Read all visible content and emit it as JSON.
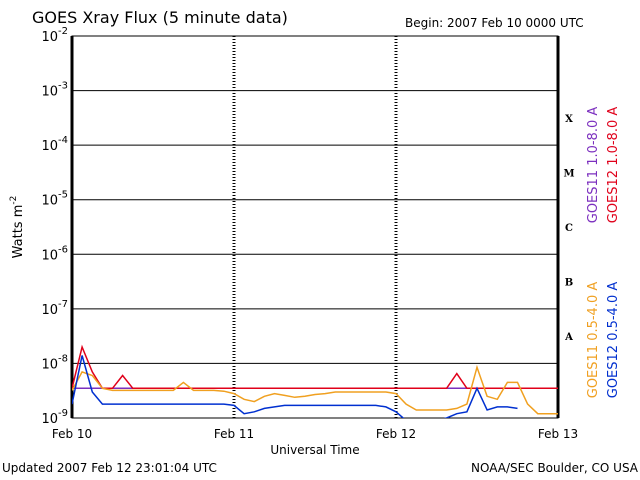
{
  "chart_data": {
    "type": "line",
    "title": "GOES Xray Flux (5 minute data)",
    "subtitle": "Begin:  2007 Feb 10 0000 UTC",
    "xlabel": "Universal Time",
    "ylabel": "Watts m",
    "ylabel_exponent": "-2",
    "footer_left": "Updated 2007 Feb 12 23:01:04 UTC",
    "footer_right": "NOAA/SEC Boulder, CO USA",
    "log_y": true,
    "grid": true,
    "xlim": [
      0,
      72
    ],
    "xticks": [
      {
        "value": 0,
        "label": "Feb 10"
      },
      {
        "value": 24,
        "label": "Feb 11"
      },
      {
        "value": 48,
        "label": "Feb 12"
      },
      {
        "value": 72,
        "label": "Feb 13"
      }
    ],
    "ylim": [
      1e-09,
      0.01
    ],
    "yticks": [
      {
        "value": 1e-09,
        "label": "10",
        "exponent": "-9"
      },
      {
        "value": 1e-08,
        "label": "10",
        "exponent": "-8"
      },
      {
        "value": 1e-07,
        "label": "10",
        "exponent": "-7"
      },
      {
        "value": 1e-06,
        "label": "10",
        "exponent": "-6"
      },
      {
        "value": 1e-05,
        "label": "10",
        "exponent": "-5"
      },
      {
        "value": 0.0001,
        "label": "10",
        "exponent": "-4"
      },
      {
        "value": 0.001,
        "label": "10",
        "exponent": "-3"
      },
      {
        "value": 0.01,
        "label": "10",
        "exponent": "-2"
      }
    ],
    "flare_classes": [
      "A",
      "B",
      "C",
      "M",
      "X"
    ],
    "x": [
      0,
      1.5,
      3,
      4.5,
      6,
      7.5,
      9,
      10.5,
      12,
      13.5,
      15,
      16.5,
      18,
      19.5,
      21,
      22.5,
      24,
      25.5,
      27,
      28.5,
      30,
      31.5,
      33,
      34.5,
      36,
      37.5,
      39,
      40.5,
      42,
      43.5,
      45,
      46.5,
      48,
      49.5,
      51,
      52.5,
      54,
      55.5,
      57,
      58.5,
      60,
      61.5,
      63,
      64.5,
      66,
      67.5,
      69,
      70.5,
      72
    ],
    "series": [
      {
        "name": "GOES11 1.0-8.0 A",
        "color": "#7b2fbf",
        "values": [
          3.5e-09,
          3.5e-09,
          3.5e-09,
          3.5e-09,
          3.5e-09,
          3.5e-09,
          3.5e-09,
          3.5e-09,
          3.5e-09,
          3.5e-09,
          3.5e-09,
          3.5e-09,
          3.5e-09,
          3.5e-09,
          3.5e-09,
          3.5e-09,
          3.5e-09,
          3.5e-09,
          3.5e-09,
          3.5e-09,
          3.5e-09,
          3.5e-09,
          3.5e-09,
          3.5e-09,
          3.5e-09,
          3.5e-09,
          3.5e-09,
          3.5e-09,
          3.5e-09,
          3.5e-09,
          3.5e-09,
          3.5e-09,
          3.5e-09,
          3.5e-09,
          3.5e-09,
          3.5e-09,
          3.5e-09,
          3.5e-09,
          3.5e-09,
          3.5e-09,
          3.5e-09,
          3.5e-09,
          3.5e-09,
          3.5e-09,
          3.5e-09,
          3.5e-09,
          3.5e-09,
          3.5e-09,
          3.5e-09
        ]
      },
      {
        "name": "GOES12 1.0-8.0 A",
        "color": "#e0001a",
        "values": [
          3.5e-09,
          2e-08,
          7e-09,
          3.5e-09,
          3.5e-09,
          6e-09,
          3.5e-09,
          3.5e-09,
          3.5e-09,
          3.5e-09,
          3.5e-09,
          3.5e-09,
          3.5e-09,
          3.5e-09,
          3.5e-09,
          3.5e-09,
          3.5e-09,
          3.5e-09,
          3.5e-09,
          3.5e-09,
          3.5e-09,
          3.5e-09,
          3.5e-09,
          3.5e-09,
          3.5e-09,
          3.5e-09,
          3.5e-09,
          3.5e-09,
          3.5e-09,
          3.5e-09,
          3.5e-09,
          3.5e-09,
          3.5e-09,
          3.5e-09,
          3.5e-09,
          3.5e-09,
          3.5e-09,
          3.5e-09,
          6.5e-09,
          3.5e-09,
          3.5e-09,
          3.5e-09,
          3.5e-09,
          3.5e-09,
          3.5e-09,
          3.5e-09,
          3.5e-09,
          3.5e-09,
          3.5e-09
        ]
      },
      {
        "name": "GOES11 0.5-4.0 A",
        "color": "#f0a020",
        "values": [
          3.2e-09,
          7e-09,
          6e-09,
          3.5e-09,
          3.2e-09,
          3.2e-09,
          3.2e-09,
          3.2e-09,
          3.2e-09,
          3.2e-09,
          3.2e-09,
          4.5e-09,
          3.2e-09,
          3.2e-09,
          3.2e-09,
          3.1e-09,
          2.8e-09,
          2.2e-09,
          2e-09,
          2.5e-09,
          2.8e-09,
          2.6e-09,
          2.4e-09,
          2.5e-09,
          2.7e-09,
          2.8e-09,
          3e-09,
          3e-09,
          3e-09,
          3e-09,
          3e-09,
          3e-09,
          2.8e-09,
          1.8e-09,
          1.4e-09,
          1.4e-09,
          1.4e-09,
          1.4e-09,
          1.5e-09,
          1.8e-09,
          8.5e-09,
          2.5e-09,
          2.2e-09,
          4.5e-09,
          4.5e-09,
          1.8e-09,
          1.2e-09,
          1.2e-09,
          1.2e-09
        ]
      },
      {
        "name": "GOES12 0.5-4.0 A",
        "color": "#0030d0",
        "values": [
          1.8e-09,
          1.4e-08,
          3e-09,
          1.8e-09,
          1.8e-09,
          1.8e-09,
          1.8e-09,
          1.8e-09,
          1.8e-09,
          1.8e-09,
          1.8e-09,
          1.8e-09,
          1.8e-09,
          1.8e-09,
          1.8e-09,
          1.8e-09,
          1.7e-09,
          1.2e-09,
          1.3e-09,
          1.5e-09,
          1.6e-09,
          1.7e-09,
          1.7e-09,
          1.7e-09,
          1.7e-09,
          1.7e-09,
          1.7e-09,
          1.7e-09,
          1.7e-09,
          1.7e-09,
          1.7e-09,
          1.6e-09,
          1.3e-09,
          9e-10,
          9e-10,
          9e-10,
          9e-10,
          1e-09,
          1.2e-09,
          1.3e-09,
          3.5e-09,
          1.4e-09,
          1.6e-09,
          1.6e-09,
          1.5e-09,
          null,
          null,
          null,
          null
        ]
      }
    ]
  }
}
